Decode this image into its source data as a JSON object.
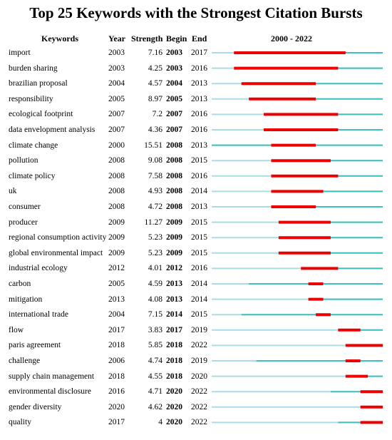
{
  "title": "Top 25 Keywords with the Strongest Citation Bursts",
  "headers": {
    "keywords": "Keywords",
    "year": "Year",
    "strength": "Strength",
    "begin": "Begin",
    "end": "End",
    "range": "2000 - 2022"
  },
  "colors": {
    "base": "#a9dde3",
    "active": "#40bfbf",
    "burst": "#ee0000"
  },
  "chart_data": {
    "type": "table",
    "range_start": 2000,
    "range_end": 2022,
    "rows": [
      {
        "keyword": "import",
        "year": 2003,
        "strength": "7.16",
        "begin": 2003,
        "end": 2017
      },
      {
        "keyword": "burden sharing",
        "year": 2003,
        "strength": "4.25",
        "begin": 2003,
        "end": 2016
      },
      {
        "keyword": "brazilian proposal",
        "year": 2004,
        "strength": "4.57",
        "begin": 2004,
        "end": 2013
      },
      {
        "keyword": "responsibility",
        "year": 2005,
        "strength": "8.97",
        "begin": 2005,
        "end": 2013
      },
      {
        "keyword": "ecological footprint",
        "year": 2007,
        "strength": "7.2",
        "begin": 2007,
        "end": 2016
      },
      {
        "keyword": "data envelopment analysis",
        "year": 2007,
        "strength": "4.36",
        "begin": 2007,
        "end": 2016
      },
      {
        "keyword": "climate change",
        "year": 2000,
        "strength": "15.51",
        "begin": 2008,
        "end": 2013
      },
      {
        "keyword": "pollution",
        "year": 2008,
        "strength": "9.08",
        "begin": 2008,
        "end": 2015
      },
      {
        "keyword": "climate policy",
        "year": 2008,
        "strength": "7.58",
        "begin": 2008,
        "end": 2016
      },
      {
        "keyword": "uk",
        "year": 2008,
        "strength": "4.93",
        "begin": 2008,
        "end": 2014
      },
      {
        "keyword": "consumer",
        "year": 2008,
        "strength": "4.72",
        "begin": 2008,
        "end": 2013
      },
      {
        "keyword": "producer",
        "year": 2009,
        "strength": "11.27",
        "begin": 2009,
        "end": 2015
      },
      {
        "keyword": "regional consumption activity",
        "year": 2009,
        "strength": "5.23",
        "begin": 2009,
        "end": 2015
      },
      {
        "keyword": "global environmental impact",
        "year": 2009,
        "strength": "5.23",
        "begin": 2009,
        "end": 2015
      },
      {
        "keyword": "industrial ecology",
        "year": 2012,
        "strength": "4.01",
        "begin": 2012,
        "end": 2016
      },
      {
        "keyword": "carbon",
        "year": 2005,
        "strength": "4.59",
        "begin": 2013,
        "end": 2014
      },
      {
        "keyword": "mitigation",
        "year": 2013,
        "strength": "4.08",
        "begin": 2013,
        "end": 2014
      },
      {
        "keyword": "international trade",
        "year": 2004,
        "strength": "7.15",
        "begin": 2014,
        "end": 2015
      },
      {
        "keyword": "flow",
        "year": 2017,
        "strength": "3.83",
        "begin": 2017,
        "end": 2019
      },
      {
        "keyword": "paris agreement",
        "year": 2018,
        "strength": "5.85",
        "begin": 2018,
        "end": 2022
      },
      {
        "keyword": "challenge",
        "year": 2006,
        "strength": "4.74",
        "begin": 2018,
        "end": 2019
      },
      {
        "keyword": "supply chain management",
        "year": 2018,
        "strength": "4.55",
        "begin": 2018,
        "end": 2020
      },
      {
        "keyword": "environmental disclosure",
        "year": 2016,
        "strength": "4.71",
        "begin": 2020,
        "end": 2022
      },
      {
        "keyword": "gender diversity",
        "year": 2020,
        "strength": "4.62",
        "begin": 2020,
        "end": 2022
      },
      {
        "keyword": "quality",
        "year": 2017,
        "strength": "4",
        "begin": 2020,
        "end": 2022
      }
    ]
  }
}
